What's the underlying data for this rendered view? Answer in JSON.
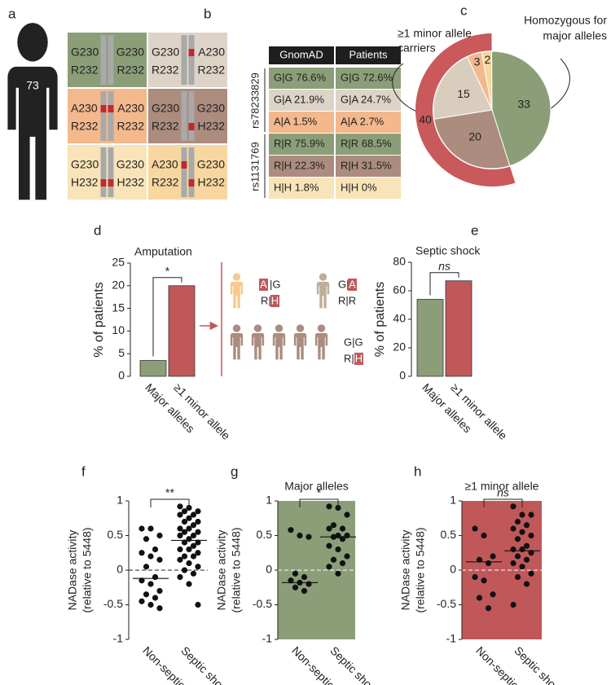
{
  "panel_labels": [
    "a",
    "b",
    "c",
    "d",
    "e",
    "f",
    "g",
    "h"
  ],
  "figure_count": 73,
  "genotype_grid": [
    {
      "top": [
        "G230",
        "G230"
      ],
      "bottom": [
        "R232",
        "R232"
      ]
    },
    {
      "top": [
        "G230",
        "A230"
      ],
      "bottom": [
        "R232",
        "R232"
      ]
    },
    {
      "top": [
        "A230",
        "A230"
      ],
      "bottom": [
        "R232",
        "R232"
      ]
    },
    {
      "top": [
        "G230",
        "G230"
      ],
      "bottom": [
        "R232",
        "H232"
      ]
    },
    {
      "top": [
        "G230",
        "G230"
      ],
      "bottom": [
        "H232",
        "H232"
      ]
    },
    {
      "top": [
        "A230",
        "G230"
      ],
      "bottom": [
        "R232",
        "H232"
      ]
    }
  ],
  "table": {
    "header": [
      "GnomAD",
      "Patients"
    ],
    "groups": [
      {
        "name": "rs78233829",
        "rows": [
          [
            "G|G 76.6%",
            "G|G 72.6%"
          ],
          [
            "G|A 21.9%",
            "G|A 24.7%"
          ],
          [
            "A|A 1.5%",
            "A|A 2.7%"
          ]
        ]
      },
      {
        "name": "rs1131769",
        "rows": [
          [
            "R|R 75.9%",
            "R|R 68.5%"
          ],
          [
            "R|H 22.3%",
            "R|H 31.5%"
          ],
          [
            "H|H 1.8%",
            "H|H 0%"
          ]
        ]
      }
    ]
  },
  "amputation_genotypes": [
    [
      [
        "A",
        "|G"
      ],
      [
        "R|",
        "H"
      ]
    ],
    [
      [
        "G|",
        "A"
      ],
      [
        "R|R"
      ]
    ],
    [
      [
        "G|G"
      ],
      [
        "R|",
        "H"
      ]
    ]
  ],
  "chart_data": [
    {
      "type": "pie",
      "values": [
        3,
        2,
        33,
        20,
        15
      ],
      "colors": [
        "#f3b88c",
        "#f8d6a0",
        "#8c9e78",
        "#ab8c7f",
        "#d9cebd"
      ],
      "ring": {
        "value": 40,
        "color": "#c9595a"
      },
      "annotations": [
        [
          "≥1 minor allele",
          "carriers"
        ],
        [
          "Homozygous for",
          "major alleles"
        ]
      ]
    },
    {
      "type": "bar",
      "title": "Amputation",
      "ylabel": "% of patients",
      "categories": [
        "Major alleles",
        "≥1 minor allele"
      ],
      "values": [
        3.5,
        20
      ],
      "colors": [
        "#8c9e78",
        "#c0585a"
      ],
      "ylim": [
        0,
        25
      ],
      "yticks": [
        0,
        5,
        10,
        15,
        20,
        25
      ],
      "significance": "*"
    },
    {
      "type": "bar",
      "title": "Septic shock",
      "ylabel": "% of patients",
      "categories": [
        "Major alleles",
        "≥1 minor allele"
      ],
      "values": [
        54,
        67
      ],
      "colors": [
        "#8c9e78",
        "#c0585a"
      ],
      "ylim": [
        0,
        80
      ],
      "yticks": [
        0,
        20,
        40,
        60,
        80
      ],
      "significance": "ns"
    },
    {
      "type": "strip",
      "ylabel": [
        "NADase activity",
        "(relative to 5448)"
      ],
      "categories": [
        "Non-septic",
        "Septic shock"
      ],
      "values": [
        [
          0.6,
          0.6,
          0.5,
          0.45,
          0.3,
          0.25,
          0.2,
          0.15,
          0.05,
          -0.1,
          -0.15,
          -0.2,
          -0.3,
          -0.35,
          -0.4,
          -0.45,
          -0.5,
          -0.55
        ],
        [
          0.92,
          0.9,
          0.85,
          0.85,
          0.8,
          0.8,
          0.75,
          0.7,
          0.7,
          0.65,
          0.6,
          0.6,
          0.55,
          0.55,
          0.5,
          0.5,
          0.45,
          0.4,
          0.4,
          0.35,
          0.3,
          0.3,
          0.25,
          0.2,
          0.2,
          0.15,
          0.1,
          0.05,
          0.0,
          -0.05,
          -0.1,
          -0.2,
          -0.5
        ]
      ],
      "medians": [
        -0.12,
        0.43
      ],
      "ylim": [
        -1,
        1
      ],
      "yticks": [
        -1,
        -0.5,
        0,
        0.5,
        1
      ],
      "significance": "**"
    },
    {
      "type": "strip",
      "title": "Major alleles",
      "ylabel": [
        "NADase activity",
        "(relative to 5448)"
      ],
      "categories": [
        "Non-septic",
        "Septic shock"
      ],
      "background": "#8c9e78",
      "values": [
        [
          0.58,
          0.5,
          0.48,
          -0.05,
          -0.1,
          -0.15,
          -0.18,
          -0.2,
          -0.25,
          -0.3
        ],
        [
          0.92,
          0.9,
          0.8,
          0.65,
          0.6,
          0.6,
          0.5,
          0.5,
          0.48,
          0.45,
          0.35,
          0.3,
          0.2,
          0.15,
          0.1,
          0.05,
          -0.05
        ]
      ],
      "medians": [
        -0.18,
        0.48
      ],
      "ylim": [
        -1,
        1
      ],
      "yticks": [
        -1,
        -0.5,
        0,
        0.5,
        1
      ],
      "significance": "*"
    },
    {
      "type": "strip",
      "title": "≥1 minor allele",
      "ylabel": [
        "NADase activity",
        "(relative to 5448)"
      ],
      "categories": [
        "Non-septic",
        "Septic shock"
      ],
      "background": "#c0585a",
      "values": [
        [
          0.6,
          0.5,
          0.2,
          0.15,
          0.1,
          -0.1,
          -0.15,
          -0.35,
          -0.4,
          -0.55
        ],
        [
          0.92,
          0.8,
          0.8,
          0.7,
          0.65,
          0.6,
          0.55,
          0.5,
          0.45,
          0.35,
          0.3,
          0.3,
          0.25,
          0.2,
          0.15,
          0.1,
          0.05,
          -0.05,
          -0.1,
          -0.2,
          -0.5
        ]
      ],
      "medians": [
        0.12,
        0.28
      ],
      "ylim": [
        -1,
        1
      ],
      "yticks": [
        -1,
        -0.5,
        0,
        0.5,
        1
      ],
      "significance": "ns"
    }
  ]
}
